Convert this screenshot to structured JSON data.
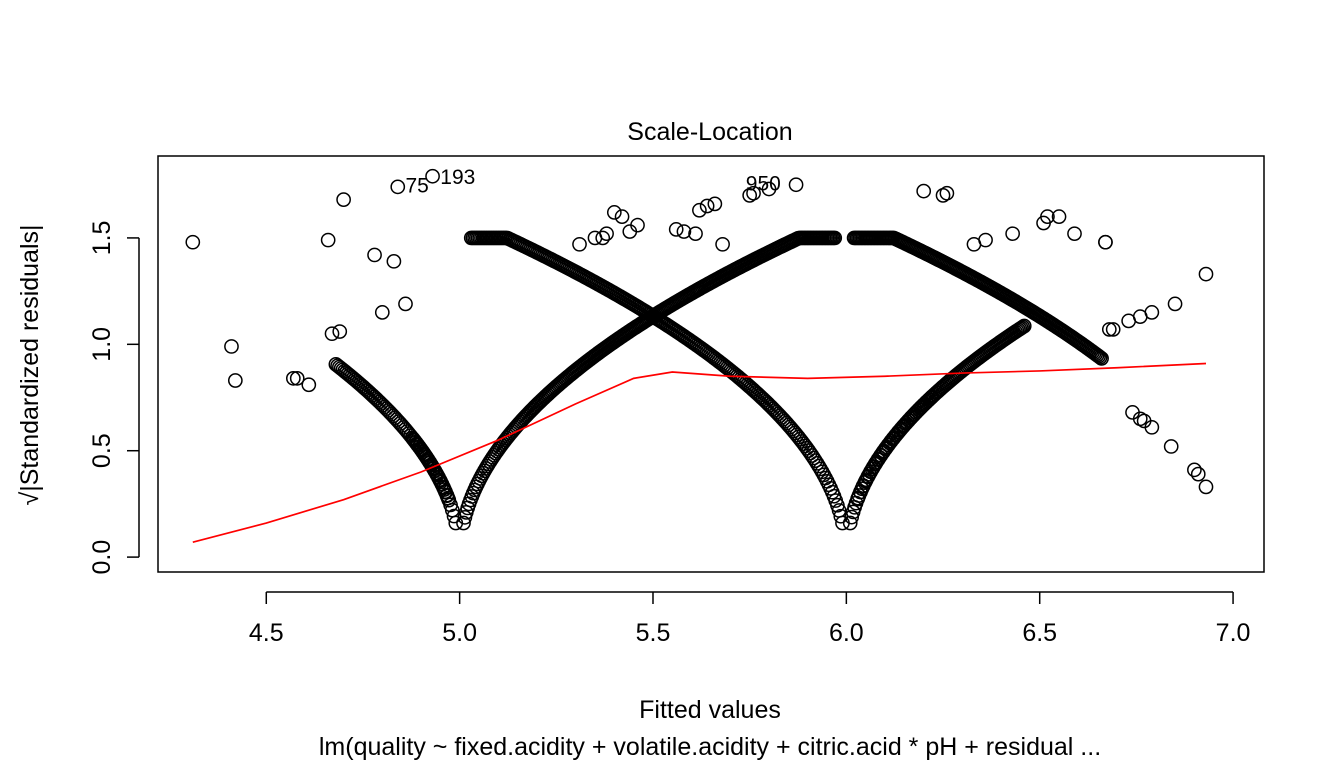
{
  "chart_data": {
    "type": "scatter",
    "title": "Scale-Location",
    "xlabel": "Fitted values",
    "ylabel": "√|Standardized residuals|",
    "subtitle": "lm(quality ~ fixed.acidity + volatile.acidity + citric.acid * pH + residual ...",
    "xlim": [
      4.22,
      7.08
    ],
    "ylim": [
      -0.07,
      1.885
    ],
    "xticks": [
      4.5,
      5.0,
      5.5,
      6.0,
      6.5,
      7.0
    ],
    "xtick_labels": [
      "4.5",
      "5.0",
      "5.5",
      "6.0",
      "6.5",
      "7.0"
    ],
    "yticks": [
      0.0,
      0.5,
      1.0,
      1.5
    ],
    "ytick_labels": [
      "0.0",
      "0.5",
      "1.0",
      "1.5"
    ],
    "grid": false,
    "point_color": "#000000",
    "smooth_color": "#ff0000",
    "points": {
      "isolated": [
        [
          4.31,
          1.48
        ],
        [
          4.41,
          0.99
        ],
        [
          4.42,
          0.83
        ],
        [
          4.57,
          0.84
        ],
        [
          4.58,
          0.84
        ],
        [
          4.61,
          0.81
        ],
        [
          4.66,
          1.49
        ],
        [
          4.67,
          1.05
        ],
        [
          4.69,
          1.06
        ],
        [
          4.7,
          1.68
        ],
        [
          4.78,
          1.42
        ],
        [
          4.8,
          1.15
        ],
        [
          4.83,
          1.39
        ],
        [
          4.84,
          1.74
        ],
        [
          4.86,
          1.19
        ],
        [
          4.93,
          1.79
        ],
        [
          5.31,
          1.47
        ],
        [
          5.35,
          1.5
        ],
        [
          5.37,
          1.5
        ],
        [
          5.38,
          1.52
        ],
        [
          5.4,
          1.62
        ],
        [
          5.42,
          1.6
        ],
        [
          5.44,
          1.53
        ],
        [
          5.46,
          1.56
        ],
        [
          5.56,
          1.54
        ],
        [
          5.58,
          1.53
        ],
        [
          5.61,
          1.52
        ],
        [
          5.62,
          1.63
        ],
        [
          5.64,
          1.65
        ],
        [
          5.66,
          1.66
        ],
        [
          5.68,
          1.47
        ],
        [
          5.75,
          1.7
        ],
        [
          5.76,
          1.71
        ],
        [
          5.8,
          1.73
        ],
        [
          5.87,
          1.75
        ],
        [
          6.2,
          1.72
        ],
        [
          6.25,
          1.7
        ],
        [
          6.26,
          1.71
        ],
        [
          6.33,
          1.47
        ],
        [
          6.36,
          1.49
        ],
        [
          6.43,
          1.52
        ],
        [
          6.51,
          1.57
        ],
        [
          6.52,
          1.6
        ],
        [
          6.55,
          1.6
        ],
        [
          6.59,
          1.52
        ],
        [
          6.67,
          1.48
        ],
        [
          6.67,
          1.48
        ],
        [
          6.68,
          1.07
        ],
        [
          6.69,
          1.07
        ],
        [
          6.73,
          1.11
        ],
        [
          6.76,
          1.13
        ],
        [
          6.79,
          1.15
        ],
        [
          6.85,
          1.19
        ],
        [
          6.93,
          1.33
        ],
        [
          6.74,
          0.68
        ],
        [
          6.76,
          0.65
        ],
        [
          6.77,
          0.64
        ],
        [
          6.79,
          0.61
        ],
        [
          6.84,
          0.52
        ],
        [
          6.9,
          0.41
        ],
        [
          6.91,
          0.39
        ],
        [
          6.93,
          0.33
        ]
      ],
      "branches": [
        {
          "from": 4.68,
          "to": 4.99,
          "count": 70,
          "center": 5.0,
          "direction": "down"
        },
        {
          "from": 4.88,
          "to": 4.97,
          "count": 30,
          "center": 5.0,
          "direction": "up"
        },
        {
          "from": 5.01,
          "to": 5.62,
          "count": 170,
          "center": 5.0,
          "direction": "up"
        },
        {
          "from": 5.03,
          "to": 5.99,
          "count": 220,
          "center": 6.0,
          "direction": "down"
        },
        {
          "from": 5.62,
          "to": 5.97,
          "count": 90,
          "center": 5.0,
          "direction": "up"
        },
        {
          "from": 6.01,
          "to": 6.46,
          "count": 120,
          "center": 6.0,
          "direction": "up"
        },
        {
          "from": 6.02,
          "to": 6.66,
          "count": 170,
          "center": 7.0,
          "direction": "up"
        },
        {
          "from": 6.03,
          "to": 6.22,
          "count": 30,
          "center": 6.0,
          "direction": "up"
        }
      ]
    },
    "smooth_line": {
      "x": [
        4.31,
        4.5,
        4.7,
        4.9,
        5.1,
        5.3,
        5.45,
        5.55,
        5.7,
        5.9,
        6.1,
        6.3,
        6.5,
        6.7,
        6.93
      ],
      "y": [
        0.07,
        0.16,
        0.27,
        0.4,
        0.55,
        0.72,
        0.84,
        0.87,
        0.85,
        0.84,
        0.85,
        0.865,
        0.875,
        0.89,
        0.91
      ]
    },
    "annotations": [
      {
        "text": "75",
        "x": 4.86,
        "y": 1.75
      },
      {
        "text": "193",
        "x": 4.95,
        "y": 1.79
      },
      {
        "text": "950",
        "x": 5.74,
        "y": 1.76
      }
    ]
  }
}
